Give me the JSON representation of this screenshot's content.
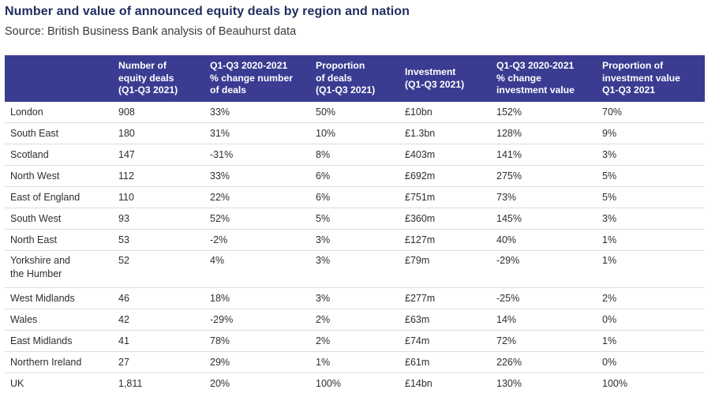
{
  "title": "Number and value of announced equity deals by region and nation",
  "subtitle": "Source: British Business Bank analysis of Beauhurst data",
  "table": {
    "headers": [
      "",
      "Number of\nequity deals\n(Q1-Q3 2021)",
      "Q1-Q3 2020-2021\n% change number\nof deals",
      "Proportion\nof deals\n(Q1-Q3 2021)",
      "Investment\n(Q1-Q3 2021)",
      "Q1-Q3 2020-2021\n% change\ninvestment value",
      "Proportion of\ninvestment value\nQ1-Q3 2021"
    ],
    "rows": [
      [
        "London",
        "908",
        "33%",
        "50%",
        "£10bn",
        "152%",
        "70%"
      ],
      [
        "South East",
        "180",
        "31%",
        "10%",
        "£1.3bn",
        "128%",
        "9%"
      ],
      [
        "Scotland",
        "147",
        "-31%",
        "8%",
        "£403m",
        "141%",
        "3%"
      ],
      [
        "North West",
        "112",
        "33%",
        "6%",
        "£692m",
        "275%",
        "5%"
      ],
      [
        "East of England",
        "110",
        "22%",
        "6%",
        "£751m",
        "73%",
        "5%"
      ],
      [
        "South West",
        "93",
        "52%",
        "5%",
        "£360m",
        "145%",
        "3%"
      ],
      [
        "North East",
        "53",
        "-2%",
        "3%",
        "£127m",
        "40%",
        "1%"
      ],
      [
        "Yorkshire and\nthe Humber",
        "52",
        "4%",
        "3%",
        "£79m",
        "-29%",
        "1%"
      ],
      [
        "West Midlands",
        "46",
        "18%",
        "3%",
        "£277m",
        "-25%",
        "2%"
      ],
      [
        "Wales",
        "42",
        "-29%",
        "2%",
        "£63m",
        "14%",
        "0%"
      ],
      [
        "East Midlands",
        "41",
        "78%",
        "2%",
        "£74m",
        "72%",
        "1%"
      ],
      [
        "Northern Ireland",
        "27",
        "29%",
        "1%",
        "£61m",
        "226%",
        "0%"
      ],
      [
        "UK",
        "1,811",
        "20%",
        "100%",
        "£14bn",
        "130%",
        "100%"
      ]
    ]
  },
  "colors": {
    "header_bg": "#3a3c92",
    "title": "#1e2d5e",
    "row_divider": "#dcdcdc"
  }
}
